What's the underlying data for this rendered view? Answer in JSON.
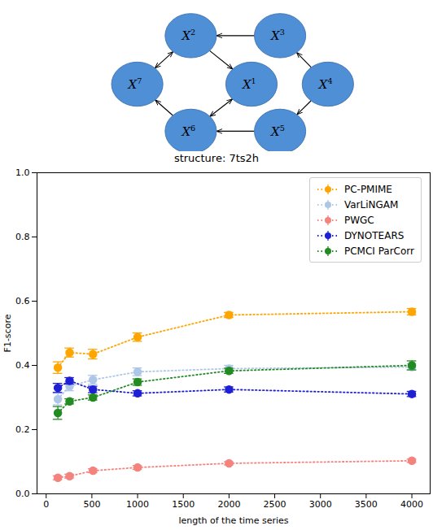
{
  "diagram": {
    "nodes": [
      {
        "id": "X1",
        "base": "X",
        "sup": "1"
      },
      {
        "id": "X2",
        "base": "X",
        "sup": "2"
      },
      {
        "id": "X3",
        "base": "X",
        "sup": "3"
      },
      {
        "id": "X4",
        "base": "X",
        "sup": "4"
      },
      {
        "id": "X5",
        "base": "X",
        "sup": "5"
      },
      {
        "id": "X6",
        "base": "X",
        "sup": "6"
      },
      {
        "id": "X7",
        "base": "X",
        "sup": "7"
      }
    ],
    "edges": [
      {
        "from": "X3",
        "to": "X2",
        "type": "directed"
      },
      {
        "from": "X2",
        "to": "X7",
        "type": "bidirected"
      },
      {
        "from": "X2",
        "to": "X1",
        "type": "directed"
      },
      {
        "from": "X1",
        "to": "X6",
        "type": "bidirected"
      },
      {
        "from": "X4",
        "to": "X3",
        "type": "directed"
      },
      {
        "from": "X4",
        "to": "X5",
        "type": "directed"
      },
      {
        "from": "X5",
        "to": "X6",
        "type": "directed"
      },
      {
        "from": "X6",
        "to": "X7",
        "type": "directed"
      }
    ]
  },
  "chart_data": {
    "type": "line",
    "title": "structure: 7ts2h",
    "x_label": "length of the time series",
    "y_label": "F1-score",
    "x": [
      128,
      256,
      512,
      1000,
      2000,
      4000
    ],
    "xlim": [
      -100,
      4200
    ],
    "xticks": [
      0,
      500,
      1000,
      1500,
      2000,
      2500,
      3000,
      3500,
      4000
    ],
    "ylim": [
      0,
      1
    ],
    "yticks": [
      {
        "value": 0,
        "label": "0.0"
      },
      {
        "value": 0.2,
        "label": "0.2"
      },
      {
        "value": 0.4,
        "label": "0.4"
      },
      {
        "value": 0.6,
        "label": "0.6"
      },
      {
        "value": 0.8,
        "label": "0.8"
      },
      {
        "value": 1,
        "label": "1.0"
      }
    ],
    "grid": false,
    "legend": "top-right",
    "marker": "o",
    "line_style": "dotted",
    "series": [
      {
        "name": "PC-PMIME",
        "color": "#ffa500",
        "values": [
          0.393,
          0.44,
          0.435,
          0.488,
          0.557,
          0.567
        ],
        "errors": [
          0.018,
          0.014,
          0.015,
          0.013,
          0.008,
          0.01
        ]
      },
      {
        "name": "VarLiNGAM",
        "color": "#aec7e8",
        "values": [
          0.295,
          0.335,
          0.355,
          0.38,
          0.39,
          0.395
        ],
        "errors": [
          0.018,
          0.014,
          0.014,
          0.012,
          0.01,
          0.01
        ]
      },
      {
        "name": "PWGC",
        "color": "#f4837d",
        "values": [
          0.05,
          0.055,
          0.072,
          0.082,
          0.095,
          0.103
        ],
        "errors": [
          0.006,
          0.006,
          0.006,
          0.006,
          0.005,
          0.005
        ]
      },
      {
        "name": "DYNOTEARS",
        "color": "#1f1fd6",
        "values": [
          0.33,
          0.352,
          0.325,
          0.313,
          0.325,
          0.311
        ],
        "errors": [
          0.014,
          0.01,
          0.01,
          0.008,
          0.008,
          0.008
        ]
      },
      {
        "name": "PCMCI ParCorr",
        "color": "#228b22",
        "values": [
          0.252,
          0.288,
          0.3,
          0.348,
          0.383,
          0.4
        ],
        "errors": [
          0.02,
          0.008,
          0.008,
          0.01,
          0.008,
          0.014
        ]
      }
    ]
  }
}
